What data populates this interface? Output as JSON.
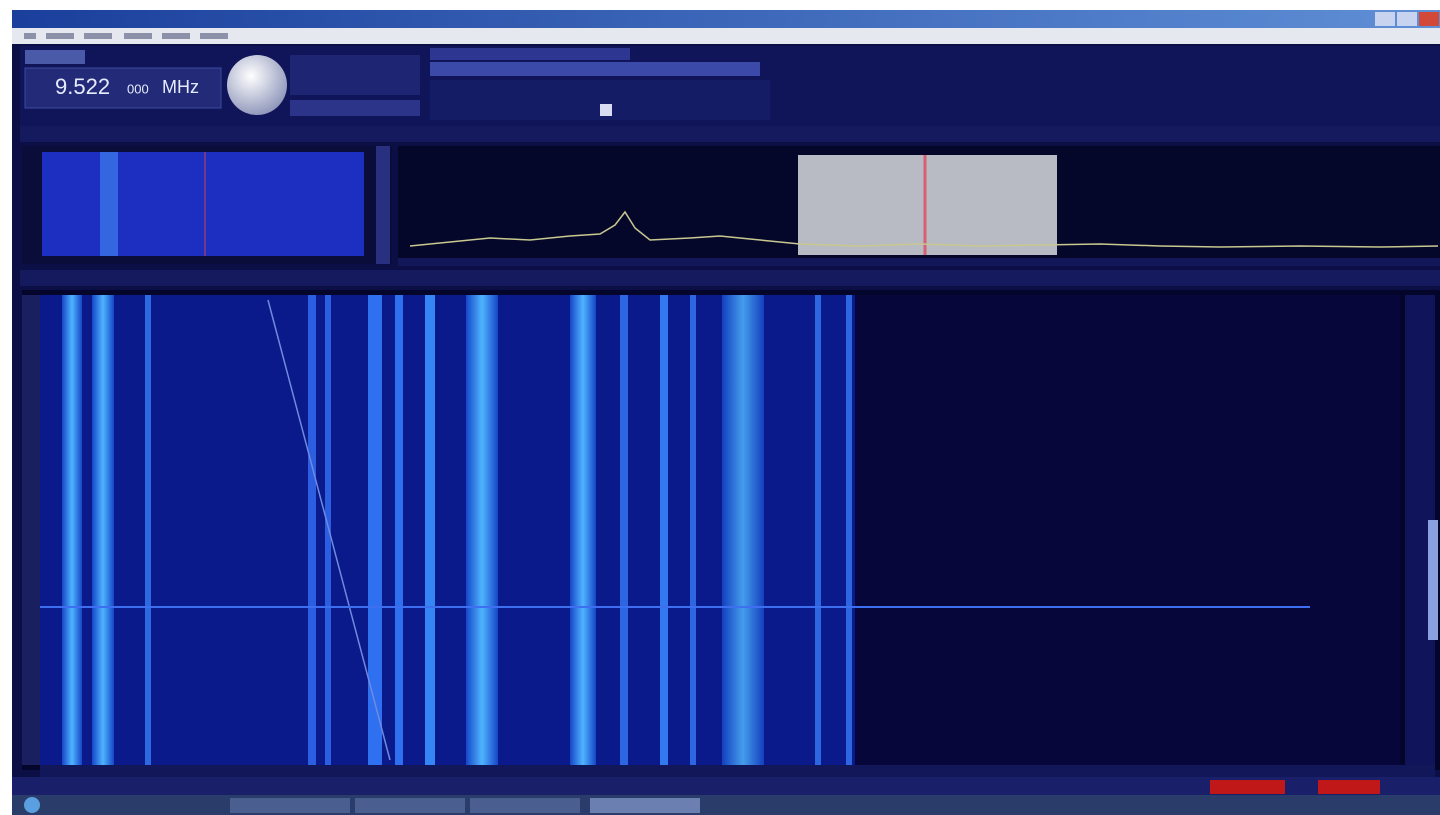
{
  "frequency_display": {
    "main": "9.522",
    "sub": "000",
    "unit": "MHz"
  }
}
